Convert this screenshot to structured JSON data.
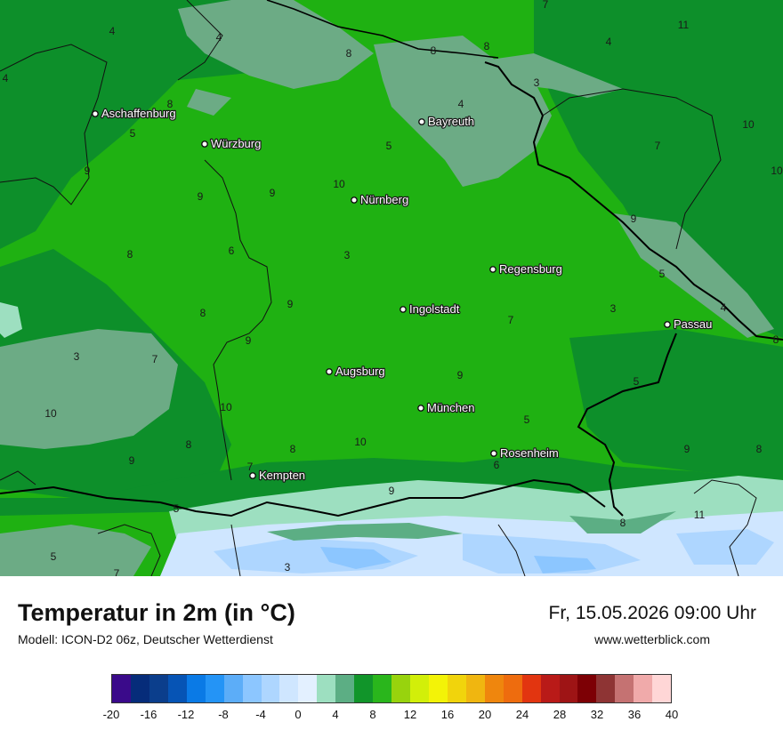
{
  "title": "Temperatur in 2m (in °C)",
  "subtitle": "Modell: ICON-D2 06z, Deutscher Wetterdienst",
  "datetime": "Fr, 15.05.2026 09:00 Uhr",
  "website": "www.wetterblick.com",
  "colors": {
    "green_dark": "#0d8f2a",
    "green_mid": "#1fb112",
    "green_gray": "#6cab85",
    "snow_light": "#cfe6ff",
    "snow_blue": "#8cc6ff",
    "mint": "#9ddfc0"
  },
  "cities": [
    {
      "name": "Aschaffenburg"
    },
    {
      "name": "Würzburg"
    },
    {
      "name": "Bayreuth"
    },
    {
      "name": "Nürnberg"
    },
    {
      "name": "Regensburg"
    },
    {
      "name": "Ingolstadt"
    },
    {
      "name": "Passau"
    },
    {
      "name": "Augsburg"
    },
    {
      "name": "München"
    },
    {
      "name": "Rosenheim"
    },
    {
      "name": "Kempten"
    }
  ],
  "isotherm_labels": [
    "4",
    "4",
    "8",
    "8",
    "8",
    "4",
    "11",
    "7",
    "4",
    "3",
    "8",
    "4",
    "5",
    "10",
    "5",
    "7",
    "10",
    "9",
    "9",
    "9",
    "10",
    "9",
    "6",
    "8",
    "3",
    "5",
    "9",
    "8",
    "4",
    "9",
    "7",
    "3",
    "8",
    "9",
    "3",
    "7",
    "7",
    "9",
    "5",
    "10",
    "10",
    "5",
    "8",
    "9",
    "8",
    "10",
    "9",
    "8",
    "7",
    "6",
    "9",
    "5",
    "8",
    "11",
    "5",
    "7",
    "3"
  ],
  "legend": {
    "colors": [
      "#3a0a8a",
      "#062c7a",
      "#0b3e8c",
      "#0654b5",
      "#0a7ae6",
      "#2494f6",
      "#5cadf8",
      "#8cc6ff",
      "#aed6ff",
      "#cfe6ff",
      "#e3f0ff",
      "#9ddfc0",
      "#5cae84",
      "#11952a",
      "#2ab61c",
      "#98d30d",
      "#d2ef09",
      "#f3f307",
      "#f1d40c",
      "#f0b610",
      "#ef860d",
      "#ee6c0e",
      "#e23510",
      "#b91a18",
      "#9e1415",
      "#7d0005",
      "#8e3434",
      "#c57272",
      "#f0aaaa",
      "#ffd6d6"
    ],
    "ticks": [
      "-20",
      "-16",
      "-12",
      "-8",
      "-4",
      "0",
      "4",
      "8",
      "12",
      "16",
      "20",
      "24",
      "28",
      "32",
      "36",
      "40"
    ]
  }
}
